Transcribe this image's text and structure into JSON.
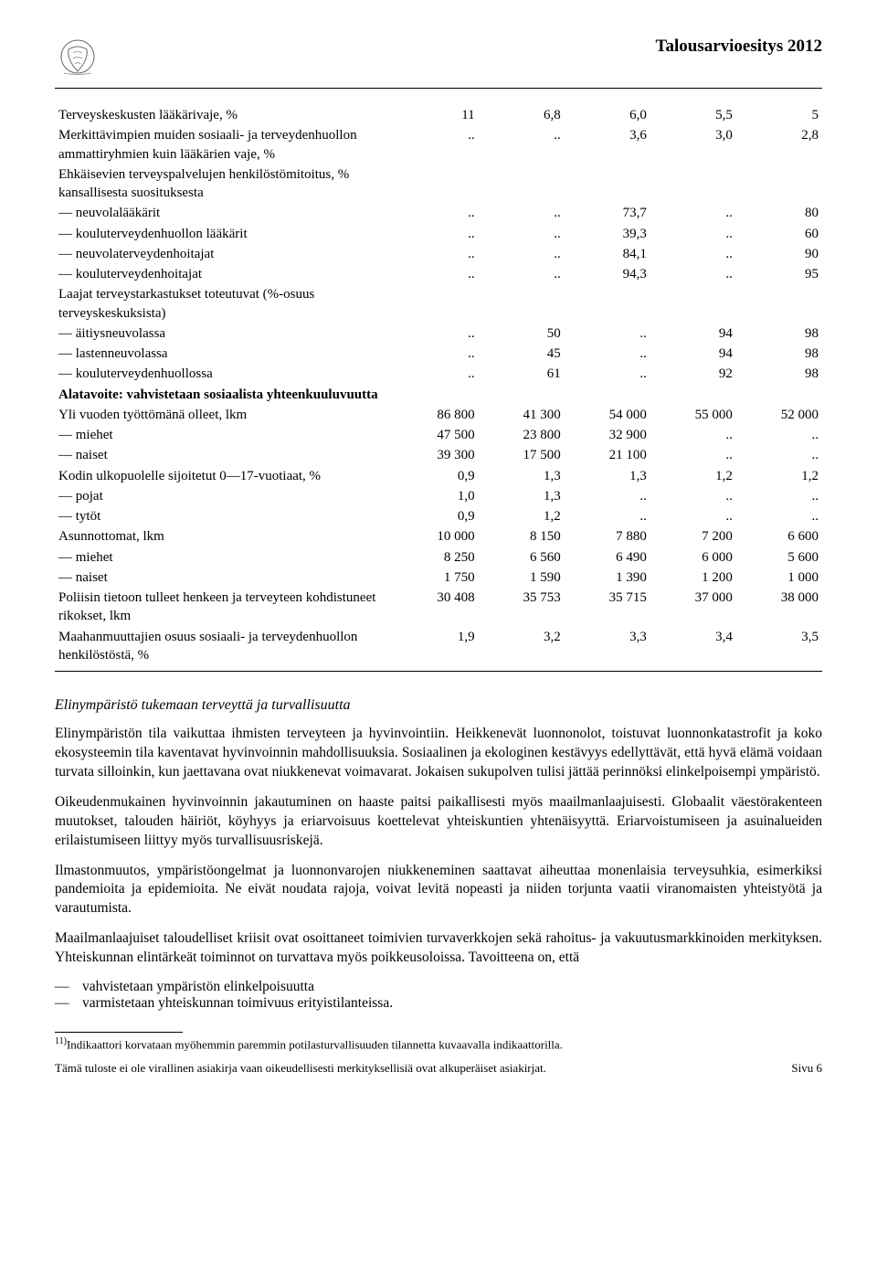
{
  "header": {
    "title": "Talousarvioesitys 2012"
  },
  "table": {
    "rows": [
      {
        "label": "Terveyskeskusten lääkärivaje, %",
        "c": [
          "11",
          "6,8",
          "6,0",
          "5,5",
          "5"
        ]
      },
      {
        "label": "Merkittävimpien muiden sosiaali- ja terveydenhuollon ammattiryhmien kuin lääkärien vaje, %",
        "c": [
          "..",
          "..",
          "3,6",
          "3,0",
          "2,8"
        ]
      },
      {
        "label": "Ehkäisevien terveyspalvelujen henkilöstömitoitus, % kansallisesta suosituksesta",
        "c": [
          "",
          "",
          "",
          "",
          ""
        ]
      },
      {
        "label": "— neuvolalääkärit",
        "c": [
          "..",
          "..",
          "73,7",
          "..",
          "80"
        ]
      },
      {
        "label": "— kouluterveydenhuollon lääkärit",
        "c": [
          "..",
          "..",
          "39,3",
          "..",
          "60"
        ]
      },
      {
        "label": "— neuvolaterveydenhoitajat",
        "c": [
          "..",
          "..",
          "84,1",
          "..",
          "90"
        ]
      },
      {
        "label": "— kouluterveydenhoitajat",
        "c": [
          "..",
          "..",
          "94,3",
          "..",
          "95"
        ]
      },
      {
        "label": "Laajat terveystarkastukset toteutuvat (%-osuus terveyskeskuksista)",
        "c": [
          "",
          "",
          "",
          "",
          ""
        ]
      },
      {
        "label": "— äitiysneuvolassa",
        "c": [
          "..",
          "50",
          "..",
          "94",
          "98"
        ]
      },
      {
        "label": "— lastenneuvolassa",
        "c": [
          "..",
          "45",
          "..",
          "94",
          "98"
        ]
      },
      {
        "label": "— kouluterveydenhuollossa",
        "c": [
          "..",
          "61",
          "..",
          "92",
          "98"
        ]
      },
      {
        "label": "Alatavoite: vahvistetaan sosiaalista yhteenkuuluvuutta",
        "bold": true,
        "c": [
          "",
          "",
          "",
          "",
          ""
        ]
      },
      {
        "label": "Yli vuoden työttömänä olleet, lkm",
        "c": [
          "86 800",
          "41 300",
          "54 000",
          "55 000",
          "52 000"
        ]
      },
      {
        "label": "— miehet",
        "c": [
          "47 500",
          "23 800",
          "32 900",
          "..",
          ".."
        ]
      },
      {
        "label": "— naiset",
        "c": [
          "39 300",
          "17 500",
          "21 100",
          "..",
          ".."
        ]
      },
      {
        "label": "Kodin ulkopuolelle sijoitetut 0—17-vuotiaat, %",
        "c": [
          "0,9",
          "1,3",
          "1,3",
          "1,2",
          "1,2"
        ]
      },
      {
        "label": "— pojat",
        "c": [
          "1,0",
          "1,3",
          "..",
          "..",
          ".."
        ]
      },
      {
        "label": "— tytöt",
        "c": [
          "0,9",
          "1,2",
          "..",
          "..",
          ".."
        ]
      },
      {
        "label": "Asunnottomat, lkm",
        "c": [
          "10 000",
          "8 150",
          "7 880",
          "7 200",
          "6 600"
        ]
      },
      {
        "label": "— miehet",
        "c": [
          "8 250",
          "6 560",
          "6 490",
          "6 000",
          "5 600"
        ]
      },
      {
        "label": "— naiset",
        "c": [
          "1 750",
          "1 590",
          "1 390",
          "1 200",
          "1 000"
        ]
      },
      {
        "label": "Poliisin tietoon tulleet henkeen ja terveyteen kohdistuneet rikokset, lkm",
        "c": [
          "30 408",
          "35 753",
          "35 715",
          "37 000",
          "38 000"
        ]
      },
      {
        "label": "Maahanmuuttajien osuus sosiaali- ja terveydenhuollon henkilöstöstä, %",
        "c": [
          "1,9",
          "3,2",
          "3,3",
          "3,4",
          "3,5"
        ]
      }
    ]
  },
  "body": {
    "section_title": "Elinympäristö tukemaan terveyttä ja turvallisuutta",
    "p1": "Elinympäristön tila vaikuttaa ihmisten terveyteen ja hyvinvointiin. Heikkenevät luonnonolot, toistuvat luonnonkatastrofit ja koko ekosysteemin tila kaventavat hyvinvoinnin mahdollisuuksia. Sosiaalinen ja ekologinen kestävyys edellyttävät, että hyvä elämä voidaan turvata silloinkin, kun jaettavana ovat niukkenevat voimavarat. Jokaisen sukupolven tulisi jättää perinnöksi elinkelpoisempi ympäristö.",
    "p2": "Oikeudenmukainen hyvinvoinnin jakautuminen on haaste paitsi paikallisesti myös maailmanlaajuisesti. Globaalit väestörakenteen muutokset, talouden häiriöt, köyhyys ja eriarvoisuus koettelevat yhteiskuntien yhtenäisyyttä. Eriarvoistumiseen ja asuinalueiden erilaistumiseen liittyy myös turvallisuusriskejä.",
    "p3": "Ilmastonmuutos, ympäristöongelmat ja luonnonvarojen niukkeneminen saattavat aiheuttaa monenlaisia terveysuhkia, esimerkiksi pandemioita ja epidemioita. Ne eivät noudata rajoja, voivat levitä nopeasti ja niiden torjunta vaatii viranomaisten yhteistyötä ja varautumista.",
    "p4": "Maailmanlaajuiset taloudelliset kriisit ovat osoittaneet toimivien turvaverkkojen sekä rahoitus- ja vakuutusmarkkinoiden merkityksen. Yhteiskunnan elintärkeät toiminnot on turvattava myös poikkeusoloissa. Tavoitteena on, että",
    "bullets": [
      "vahvistetaan ympäristön elinkelpoisuutta",
      "varmistetaan yhteiskunnan toimivuus erityistilanteissa."
    ]
  },
  "footnote": {
    "marker": "11)",
    "text": "Indikaattori korvataan myöhemmin paremmin potilasturvallisuuden tilannetta kuvaavalla indikaattorilla."
  },
  "footer": {
    "left": "Tämä tuloste ei ole virallinen asiakirja vaan oikeudellisesti merkityksellisiä ovat alkuperäiset asiakirjat.",
    "right": "Sivu 6"
  }
}
